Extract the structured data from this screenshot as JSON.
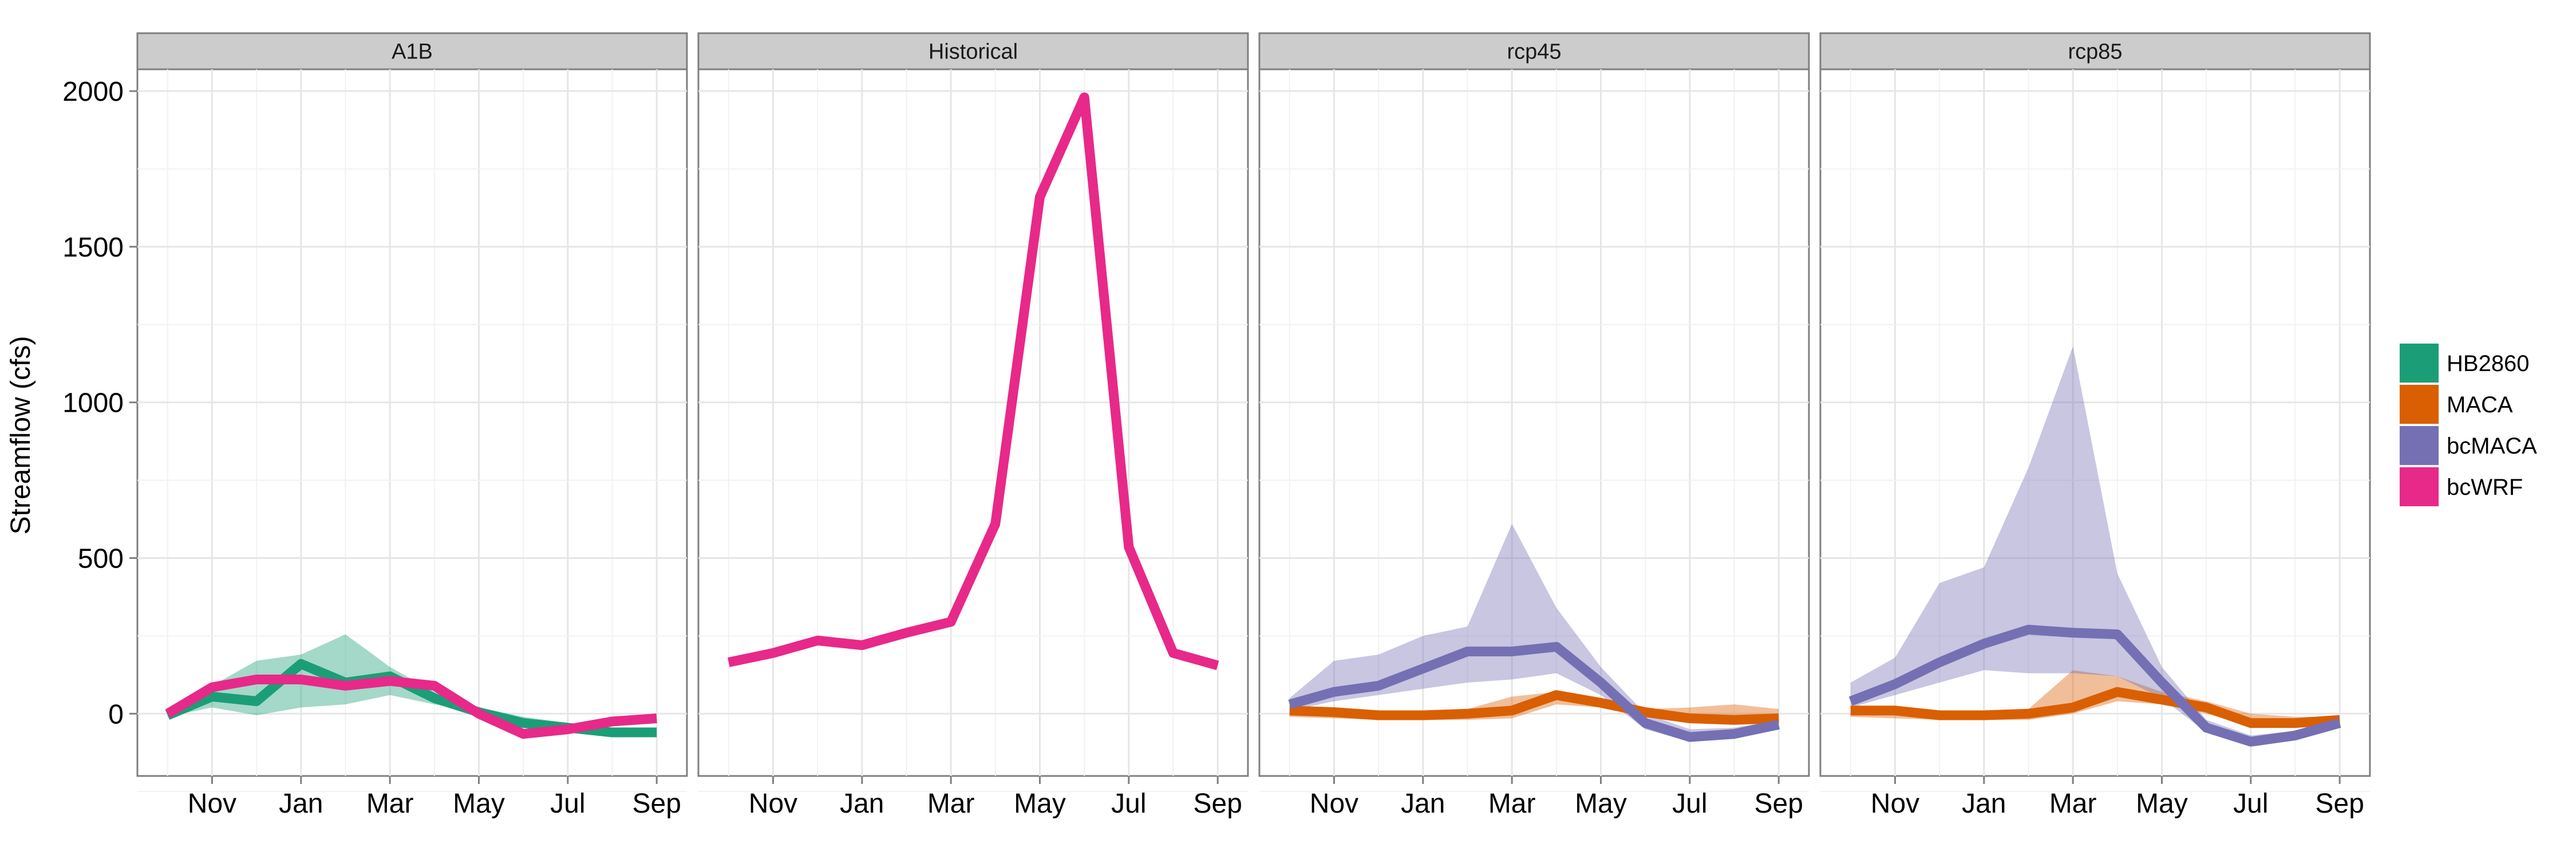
{
  "chart_data": {
    "type": "line",
    "ylabel": "Streamflow (cfs)",
    "ylim": [
      -200,
      2070
    ],
    "yticks": [
      0,
      500,
      1000,
      1500,
      2000
    ],
    "x": [
      "Oct",
      "Nov",
      "Dec",
      "Jan",
      "Feb",
      "Mar",
      "Apr",
      "May",
      "Jun",
      "Jul",
      "Aug",
      "Sep"
    ],
    "xtick_labels": [
      "Nov",
      "Jan",
      "Mar",
      "May",
      "Jul",
      "Sep"
    ],
    "grid": true,
    "legend_position": "right",
    "legend": [
      {
        "name": "HB2860",
        "color": "#1b9e77"
      },
      {
        "name": "MACA",
        "color": "#d95f02"
      },
      {
        "name": "bcMACA",
        "color": "#7570b3"
      },
      {
        "name": "bcWRF",
        "color": "#e7298a"
      }
    ],
    "panels": [
      {
        "title": "A1B",
        "series": [
          {
            "name": "HB2860",
            "color": "#1b9e77",
            "values": [
              -5,
              55,
              40,
              160,
              100,
              120,
              50,
              5,
              -30,
              -45,
              -60,
              -60
            ],
            "lower": [
              -10,
              20,
              -5,
              20,
              30,
              60,
              30,
              5,
              -20,
              -40,
              -60,
              -60
            ],
            "upper": [
              10,
              90,
              170,
              190,
              255,
              150,
              70,
              20,
              -10,
              -30,
              -50,
              -50
            ]
          },
          {
            "name": "bcWRF",
            "color": "#e7298a",
            "values": [
              0,
              85,
              110,
              110,
              90,
              105,
              90,
              0,
              -65,
              -50,
              -25,
              -15
            ]
          }
        ]
      },
      {
        "title": "Historical",
        "series": [
          {
            "name": "bcWRF",
            "color": "#e7298a",
            "values": [
              165,
              195,
              235,
              220,
              260,
              295,
              610,
              1660,
              1980,
              535,
              195,
              155
            ]
          }
        ]
      },
      {
        "title": "rcp45",
        "series": [
          {
            "name": "MACA",
            "color": "#d95f02",
            "values": [
              10,
              5,
              -5,
              -5,
              0,
              10,
              60,
              35,
              5,
              -15,
              -20,
              -15
            ],
            "lower": [
              -10,
              -15,
              -20,
              -20,
              -20,
              -15,
              30,
              20,
              -10,
              -30,
              -30,
              -30
            ],
            "upper": [
              20,
              20,
              10,
              10,
              15,
              55,
              70,
              50,
              15,
              20,
              30,
              15
            ]
          },
          {
            "name": "bcMACA",
            "color": "#7570b3",
            "values": [
              30,
              70,
              90,
              145,
              200,
              200,
              215,
              100,
              -30,
              -75,
              -65,
              -35
            ],
            "lower": [
              10,
              40,
              60,
              80,
              100,
              110,
              130,
              60,
              -50,
              -90,
              -80,
              -50
            ],
            "upper": [
              50,
              170,
              190,
              250,
              280,
              610,
              340,
              150,
              0,
              -50,
              -45,
              -20
            ]
          }
        ]
      },
      {
        "title": "rcp85",
        "series": [
          {
            "name": "MACA",
            "color": "#d95f02",
            "values": [
              10,
              10,
              -5,
              -5,
              0,
              20,
              70,
              45,
              20,
              -30,
              -30,
              -20
            ],
            "lower": [
              -10,
              -15,
              -20,
              -20,
              -20,
              0,
              40,
              30,
              0,
              -40,
              -40,
              -35
            ],
            "upper": [
              20,
              25,
              10,
              10,
              15,
              140,
              120,
              70,
              40,
              0,
              -10,
              -10
            ]
          },
          {
            "name": "bcMACA",
            "color": "#7570b3",
            "values": [
              40,
              95,
              165,
              225,
              270,
              260,
              255,
              100,
              -45,
              -90,
              -70,
              -30
            ],
            "lower": [
              20,
              60,
              100,
              140,
              130,
              130,
              120,
              50,
              -60,
              -100,
              -85,
              -45
            ],
            "upper": [
              100,
              180,
              420,
              470,
              790,
              1180,
              450,
              150,
              -20,
              -70,
              -55,
              -20
            ]
          }
        ]
      }
    ]
  }
}
